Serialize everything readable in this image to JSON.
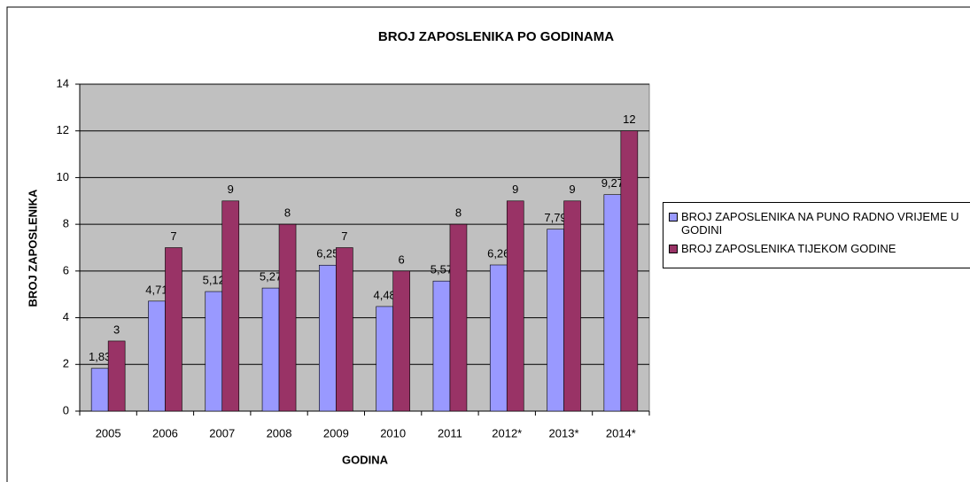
{
  "chart_data": {
    "type": "bar",
    "title": "BROJ ZAPOSLENIKA PO GODINAMA",
    "x_label": "GODINA",
    "y_label": "BROJ ZAPOSLENIKA",
    "categories": [
      "2005",
      "2006",
      "2007",
      "2008",
      "2009",
      "2010",
      "2011",
      "2012*",
      "2013*",
      "2014*"
    ],
    "series": [
      {
        "name": "BROJ ZAPOSLENIKA NA PUNO RADNO VRIJEME U GODINI",
        "color": "#9999ff",
        "values": [
          1.83,
          4.71,
          5.12,
          5.27,
          6.25,
          4.48,
          5.57,
          6.26,
          7.79,
          9.27
        ],
        "value_labels": [
          "1,83",
          "4,71",
          "5,12",
          "5,27",
          "6,25",
          "4,48",
          "5,57",
          "6,26",
          "7,79",
          "9,27"
        ]
      },
      {
        "name": "BROJ ZAPOSLENIKA TIJEKOM GODINE",
        "color": "#993366",
        "values": [
          3,
          7,
          9,
          8,
          7,
          6,
          8,
          9,
          9,
          12
        ]
      }
    ],
    "ylim": [
      0,
      14
    ],
    "yticks": [
      0,
      2,
      4,
      6,
      8,
      10,
      12,
      14
    ],
    "grid": true,
    "legend": "right"
  }
}
